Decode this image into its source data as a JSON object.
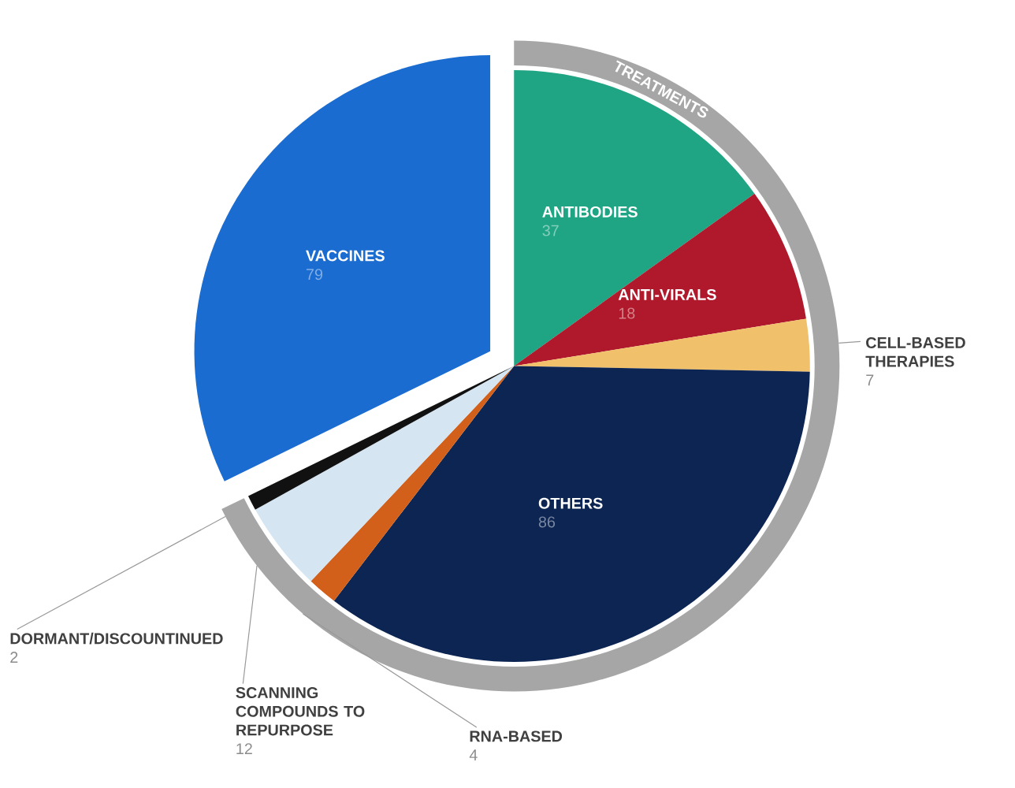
{
  "chart_data": {
    "type": "pie",
    "categories": [
      "ANTIBODIES",
      "ANTI-VIRALS",
      "CELL-BASED THERAPIES",
      "OTHERS",
      "RNA-BASED",
      "SCANNING COMPOUNDS TO REPURPOSE",
      "DORMANT/DISCOUNTINUED",
      "VACCINES"
    ],
    "values": [
      37,
      18,
      7,
      86,
      4,
      12,
      2,
      79
    ],
    "colors": [
      "#1fa584",
      "#b0192b",
      "#f0c06a",
      "#0d2552",
      "#d2601a",
      "#d5e5f2",
      "#111111",
      "#1a6cd0"
    ],
    "data_labels": true,
    "annotations": [
      "TREATMENTS"
    ]
  }
}
